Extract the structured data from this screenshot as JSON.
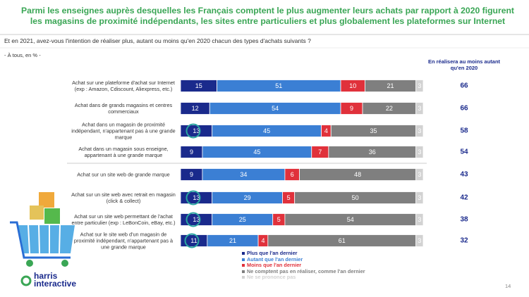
{
  "chart_data": {
    "type": "stacked-bar-horizontal",
    "title": "Parmi les enseignes auprès desquelles les Français comptent le plus augmenter leurs achats par rapport à 2020 figurent les magasins de proximité indépendants, les sites entre particuliers et plus globalement les plateformes sur Internet",
    "subtitle": "Et en 2021, avez-vous l'intention de réaliser plus, autant ou moins qu'en 2020 chacun des types d'achats suivants ?",
    "base_note": "- À tous, en % -",
    "categories": [
      "Achat sur une plateforme d'achat sur Internet (exp : Amazon, Cdiscount, Aliexpress, etc.)",
      "Achat dans de grands magasins et centres commerciaux",
      "Achat dans un magasin de proximité indépendant, n'appartenant pas à une grande marque",
      "Achat dans un magasin sous enseigne, appartenant à une grande marque",
      "Achat sur un site web de grande marque",
      "Achat sur un site web avec retrait en magasin (click & collect)",
      "Achat sur un site web permettant de l'achat entre particulier (exp : LeBonCoin, eBay, etc.)",
      "Achat sur le site web d'un magasin de proximité indépendant, n'appartenant pas à une grande marque"
    ],
    "series": [
      {
        "name": "Plus que l'an dernier",
        "color": "#1a2a8c",
        "values": [
          15,
          12,
          13,
          9,
          9,
          13,
          13,
          11
        ]
      },
      {
        "name": "Autant que l'an dernier",
        "color": "#3b7fd4",
        "values": [
          51,
          54,
          45,
          45,
          34,
          29,
          25,
          21
        ]
      },
      {
        "name": "Moins que l'an dernier",
        "color": "#e0313b",
        "values": [
          10,
          9,
          4,
          7,
          6,
          5,
          5,
          4
        ]
      },
      {
        "name": "Ne comptent pas en réaliser, comme l'an dernier",
        "color": "#7f7f7f",
        "values": [
          21,
          22,
          35,
          36,
          48,
          50,
          54,
          61
        ]
      },
      {
        "name": "Ne se prononce pas",
        "color": "#d2d2d2",
        "values": [
          3,
          3,
          3,
          3,
          3,
          3,
          3,
          3
        ]
      }
    ],
    "side_header": "En réalisera au moins autant qu'en 2020",
    "side_values": [
      66,
      66,
      58,
      54,
      43,
      42,
      38,
      32
    ],
    "logo_text": [
      "harris",
      "interactive"
    ],
    "page_number": "14"
  }
}
